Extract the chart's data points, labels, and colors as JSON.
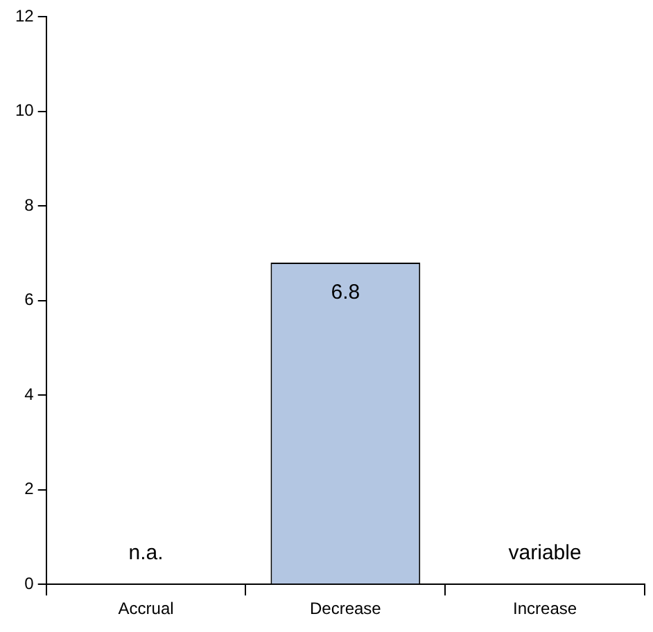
{
  "chart_data": {
    "type": "bar",
    "categories": [
      "Accrual",
      "Decrease",
      "Increase"
    ],
    "values": [
      null,
      6.8,
      null
    ],
    "value_labels": [
      "n.a.",
      "6.8",
      "variable"
    ],
    "color": "#b3c6e2",
    "ylim": [
      0,
      12
    ],
    "yticks": [
      0,
      2,
      4,
      6,
      8,
      10,
      12
    ],
    "grid": false,
    "legend": false
  }
}
